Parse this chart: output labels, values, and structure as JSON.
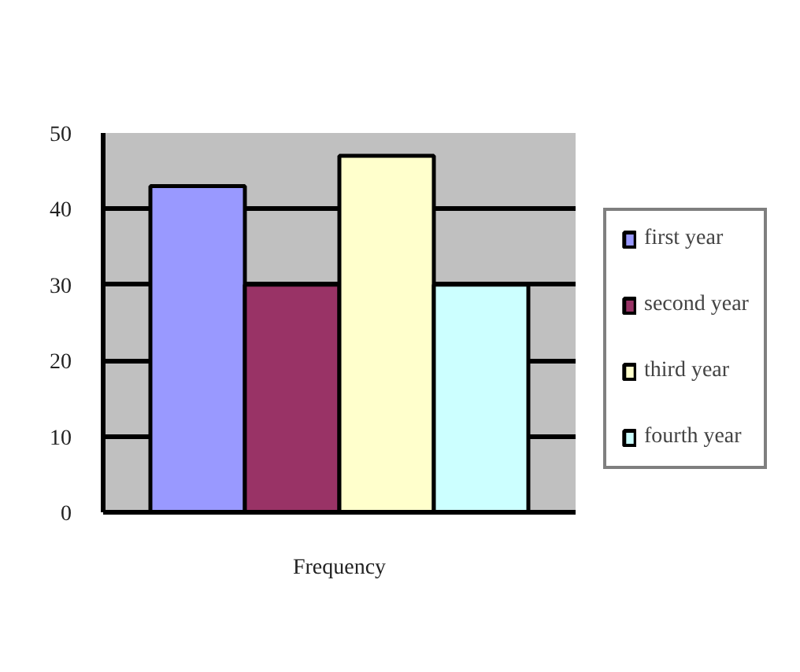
{
  "chart_data": {
    "type": "bar",
    "categories": [
      null
    ],
    "xlabel": "Frequency",
    "series": [
      {
        "name": "first year",
        "color": "#9999ff",
        "values": [
          43
        ]
      },
      {
        "name": "second year",
        "color": "#993366",
        "values": [
          30
        ]
      },
      {
        "name": "third year",
        "color": "#ffffcc",
        "values": [
          47
        ]
      },
      {
        "name": "fourth year",
        "color": "#ccffff",
        "values": [
          30
        ]
      }
    ],
    "ylim": [
      0,
      50
    ],
    "yticks": [
      0,
      10,
      20,
      30,
      40,
      50
    ],
    "grid": "y",
    "legend": "right"
  }
}
